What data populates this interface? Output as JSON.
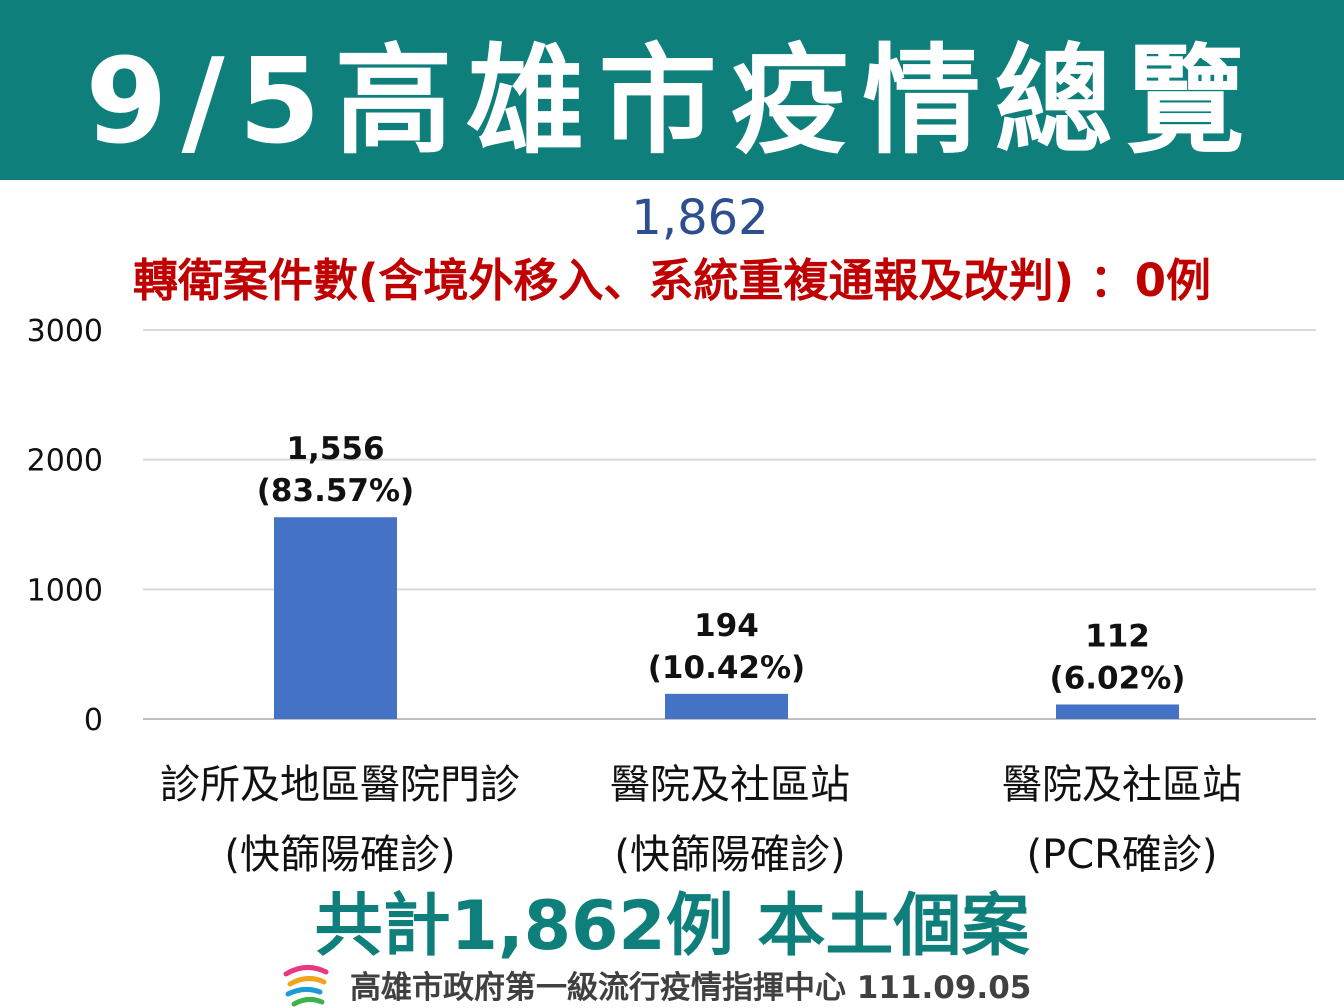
{
  "header": {
    "title": "9/5高雄市疫情總覽",
    "background": "#0e7f7a"
  },
  "total_top": "1,862",
  "subtitle": "轉衛案件數(含境外移入、系統重複通報及改判) ：0例",
  "chart_data": {
    "type": "bar",
    "categories": [
      [
        "診所及地區醫院門診",
        "(快篩陽確診)"
      ],
      [
        "醫院及社區站",
        "(快篩陽確診)"
      ],
      [
        "醫院及社區站",
        "(PCR確診)"
      ]
    ],
    "values": [
      1556,
      194,
      112
    ],
    "data_labels": [
      [
        "1,556",
        "(83.57%)"
      ],
      [
        "194",
        "(10.42%)"
      ],
      [
        "112",
        "(6.02%)"
      ]
    ],
    "ylim": [
      0,
      3000
    ],
    "yticks": [
      "0",
      "1000",
      "2000",
      "3000"
    ],
    "grid": true,
    "bar_color": "#4472c4",
    "title": "",
    "xlabel": "",
    "ylabel": ""
  },
  "summary": "共計1,862例 本土個案",
  "footer": {
    "text": "高雄市政府第一級流行疫情指揮中心 111.09.05",
    "logo_icon": "kaohsiung-logo-icon"
  }
}
